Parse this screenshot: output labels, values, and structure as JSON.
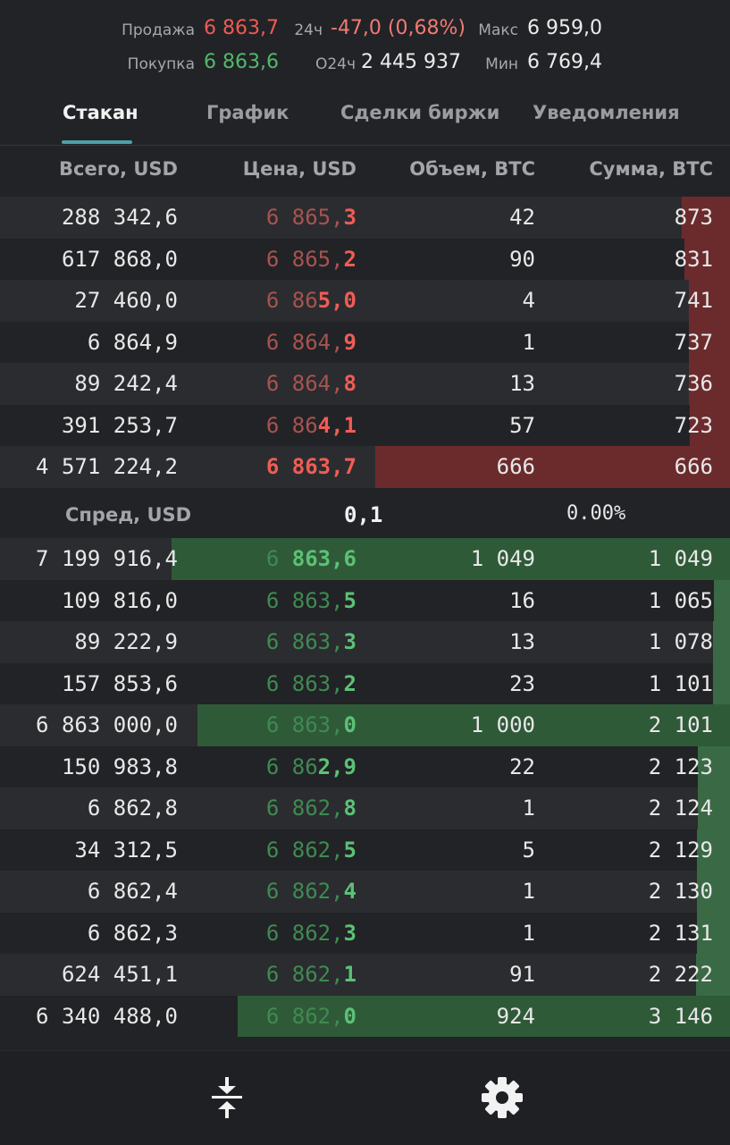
{
  "stats": {
    "sell_label": "Продажа",
    "sell_value": "6 863,7",
    "buy_label": "Покупка",
    "buy_value": "6 863,6",
    "change_label": "24ч",
    "change_value": "-47,0 (0,68%)",
    "volume_label": "O24ч",
    "volume_value": "2 445 937",
    "max_label": "Макс",
    "max_value": "6 959,0",
    "min_label": "Мин",
    "min_value": "6 769,4"
  },
  "tabs": [
    "Стакан",
    "График",
    "Сделки биржи",
    "Уведомления"
  ],
  "columns": {
    "total": "Всего, USD",
    "price": "Цена, USD",
    "volume": "Объем, BTC",
    "sum": "Сумма, BTC"
  },
  "asks": [
    {
      "total": "288 342,6",
      "price_dim": "6 865,",
      "price_bright": "3",
      "volume": "42",
      "sum": "873"
    },
    {
      "total": "617 868,0",
      "price_dim": "6 865,",
      "price_bright": "2",
      "volume": "90",
      "sum": "831"
    },
    {
      "total": "27 460,0",
      "price_dim": "6 86",
      "price_bright": "5,0",
      "volume": "4",
      "sum": "741"
    },
    {
      "total": "6 864,9",
      "price_dim": "6 864,",
      "price_bright": "9",
      "volume": "1",
      "sum": "737"
    },
    {
      "total": "89 242,4",
      "price_dim": "6 864,",
      "price_bright": "8",
      "volume": "13",
      "sum": "736"
    },
    {
      "total": "391 253,7",
      "price_dim": "6 86",
      "price_bright": "4,1",
      "volume": "57",
      "sum": "723"
    },
    {
      "total": "4 571 224,2",
      "price_dim": "",
      "price_bright": "6 863,7",
      "volume": "666",
      "sum": "666"
    }
  ],
  "spread": {
    "label": "Спред, USD",
    "value": "0,1",
    "percent": "0.00%"
  },
  "bids": [
    {
      "total": "7 199 916,4",
      "price_dim": "6 ",
      "price_bright": "863,6",
      "volume": "1 049",
      "sum": "1 049"
    },
    {
      "total": "109 816,0",
      "price_dim": "6 863,",
      "price_bright": "5",
      "volume": "16",
      "sum": "1 065"
    },
    {
      "total": "89 222,9",
      "price_dim": "6 863,",
      "price_bright": "3",
      "volume": "13",
      "sum": "1 078"
    },
    {
      "total": "157 853,6",
      "price_dim": "6 863,",
      "price_bright": "2",
      "volume": "23",
      "sum": "1 101"
    },
    {
      "total": "6 863 000,0",
      "price_dim": "6 863,",
      "price_bright": "0",
      "volume": "1 000",
      "sum": "2 101"
    },
    {
      "total": "150 983,8",
      "price_dim": "6 86",
      "price_bright": "2,9",
      "volume": "22",
      "sum": "2 123"
    },
    {
      "total": "6 862,8",
      "price_dim": "6 862,",
      "price_bright": "8",
      "volume": "1",
      "sum": "2 124"
    },
    {
      "total": "34 312,5",
      "price_dim": "6 862,",
      "price_bright": "5",
      "volume": "5",
      "sum": "2 129"
    },
    {
      "total": "6 862,4",
      "price_dim": "6 862,",
      "price_bright": "4",
      "volume": "1",
      "sum": "2 130"
    },
    {
      "total": "6 862,3",
      "price_dim": "6 862,",
      "price_bright": "3",
      "volume": "1",
      "sum": "2 131"
    },
    {
      "total": "624 451,1",
      "price_dim": "6 862,",
      "price_bright": "1",
      "volume": "91",
      "sum": "2 222"
    },
    {
      "total": "6 340 488,0",
      "price_dim": "6 862,",
      "price_bright": "0",
      "volume": "924",
      "sum": "3 146"
    }
  ],
  "bottom_bar": {
    "left_icon": "collapse-vertical-icon",
    "right_icon": "gear-icon"
  },
  "colors": {
    "ask": "#ef5a55",
    "bid": "#52b86a",
    "ask_bar": "#6b2b2d",
    "bid_bar": "#2f5a38",
    "accent": "#4f9fa8"
  }
}
